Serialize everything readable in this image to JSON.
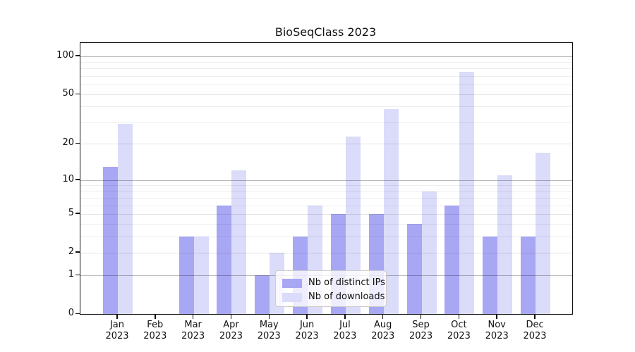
{
  "title": "BioSeqClass 2023",
  "chart_data": {
    "type": "bar",
    "title": "BioSeqClass 2023",
    "categories": [
      "Jan",
      "Feb",
      "Mar",
      "Apr",
      "May",
      "Jun",
      "Jul",
      "Aug",
      "Sep",
      "Oct",
      "Nov",
      "Dec"
    ],
    "year": "2023",
    "series": [
      {
        "name": "Nb of distinct IPs",
        "color": "#a7a7f4",
        "values": [
          13,
          0,
          3,
          6,
          1,
          3,
          5,
          5,
          4,
          6,
          3,
          3
        ]
      },
      {
        "name": "Nb of downloads",
        "color": "#dbdbfa",
        "values": [
          29,
          0,
          3,
          12,
          2,
          6,
          23,
          38,
          8,
          75,
          11,
          17
        ]
      }
    ],
    "xlabel": "",
    "ylabel": "",
    "yscale": "log1p",
    "ylim": [
      0,
      127
    ],
    "yticks": [
      0,
      1,
      2,
      5,
      10,
      20,
      50,
      100
    ],
    "grid": {
      "major": [
        1,
        10,
        100
      ],
      "labeled": [
        2,
        5,
        20,
        50
      ],
      "minor": [
        3,
        4,
        6,
        7,
        8,
        9,
        30,
        40,
        60,
        70,
        80,
        90
      ],
      "on": true
    },
    "legend": {
      "position": "bottom-center-right",
      "labels": [
        "Nb of distinct IPs",
        "Nb of downloads"
      ]
    },
    "colors": {
      "spine": "#111111",
      "grid_major": "#bababa",
      "grid_light": "#e6e6e6",
      "grid_minor": "#efefef",
      "background": "#ffffff"
    }
  }
}
